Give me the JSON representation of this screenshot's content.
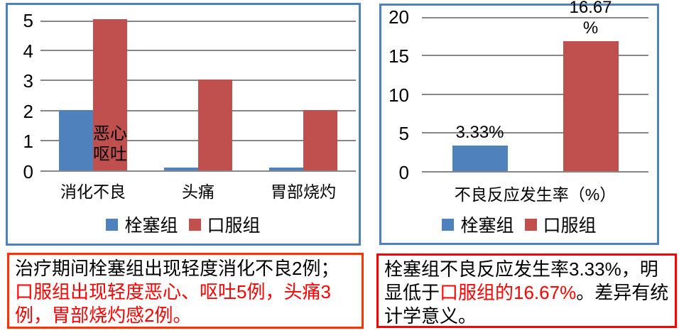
{
  "colors": {
    "bar_blue": "#4F81BD",
    "bar_red": "#C0504D",
    "chart_border": "#4F81BD",
    "gridline": "#878787",
    "left_note_border": "#FF3300",
    "right_note_border": "#FF0000",
    "note_black_text": "#000000",
    "note_red_text": "#FF0000"
  },
  "chart_data": [
    {
      "type": "bar",
      "title": "",
      "categories": [
        "消化不良",
        "头痛",
        "胃部烧灼"
      ],
      "series": [
        {
          "name": "栓塞组",
          "color": "#4F81BD",
          "values": [
            2,
            0.1,
            0.1
          ]
        },
        {
          "name": "口服组",
          "color": "#C0504D",
          "values": [
            5,
            3,
            2
          ]
        }
      ],
      "ylim": [
        0,
        5
      ],
      "yticks": [
        0,
        1,
        2,
        3,
        4,
        5
      ],
      "grid": true,
      "legend_position": "bottom",
      "annotation": {
        "text": "恶心\n呕吐",
        "category_index": 0,
        "series_index": 1
      }
    },
    {
      "type": "bar",
      "title": "",
      "categories": [
        "不良反应发生率（%）"
      ],
      "series": [
        {
          "name": "栓塞组",
          "color": "#4F81BD",
          "values": [
            3.33
          ],
          "data_labels": [
            "3.33%"
          ]
        },
        {
          "name": "口服组",
          "color": "#C0504D",
          "values": [
            16.67
          ],
          "data_labels": [
            "16.67\n%"
          ]
        }
      ],
      "ylim": [
        0,
        20
      ],
      "yticks": [
        0,
        5,
        10,
        15,
        20
      ],
      "grid": true,
      "legend_position": "bottom"
    }
  ],
  "notes": {
    "left": {
      "segments": [
        {
          "text": "治疗期间栓塞组出现轻度消化不良2例；",
          "color": "#000000"
        },
        {
          "text": "口服组出现轻度恶心、呕吐5例，头痛3例，胃部烧灼感2例。",
          "color": "#FF0000"
        }
      ]
    },
    "right": {
      "segments": [
        {
          "text": "栓塞组不良反应发生率3.33%，明显低于",
          "color": "#000000"
        },
        {
          "text": "口服组的16.67%",
          "color": "#FF0000"
        },
        {
          "text": "。差异有统计学意义。",
          "color": "#000000"
        }
      ]
    }
  }
}
